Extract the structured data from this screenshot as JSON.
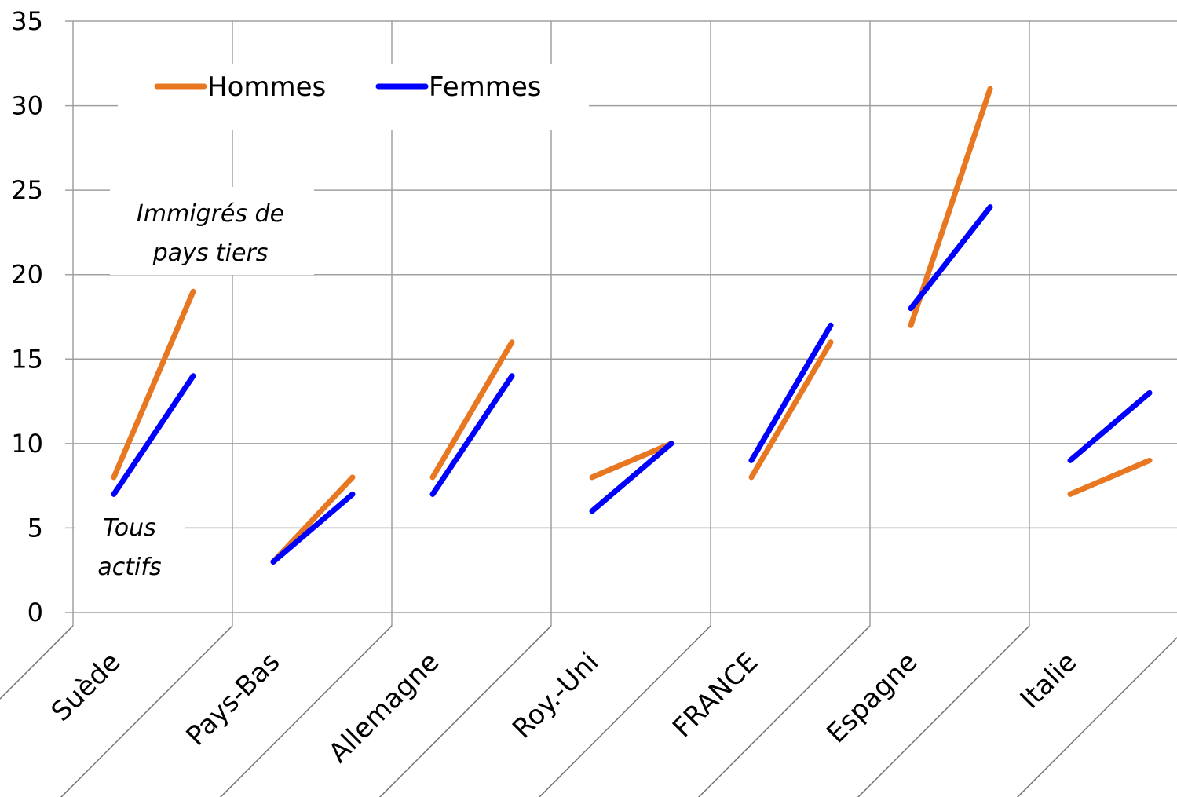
{
  "chart_data": {
    "type": "paired-line",
    "categories": [
      "Suède",
      "Pays-Bas",
      "Allemagne",
      "Roy.-Uni",
      "FRANCE",
      "Espagne",
      "Italie"
    ],
    "series": [
      {
        "name": "Hommes",
        "color": "#e87722",
        "values": [
          [
            8,
            19
          ],
          [
            3,
            8
          ],
          [
            8,
            16
          ],
          [
            8,
            10
          ],
          [
            8,
            16
          ],
          [
            17,
            31
          ],
          [
            7,
            9
          ]
        ]
      },
      {
        "name": "Femmes",
        "color": "#0000ff",
        "values": [
          [
            7,
            14
          ],
          [
            3,
            7
          ],
          [
            7,
            14
          ],
          [
            6,
            10
          ],
          [
            9,
            17
          ],
          [
            18,
            24
          ],
          [
            9,
            13
          ]
        ]
      }
    ],
    "annotations": [
      [
        "Immigrés de",
        "pays tiers"
      ],
      [
        "Tous",
        "actifs"
      ]
    ],
    "ylim": [
      0,
      35
    ],
    "yticks": [
      0,
      5,
      10,
      15,
      20,
      25,
      30,
      35
    ],
    "grid": true
  }
}
